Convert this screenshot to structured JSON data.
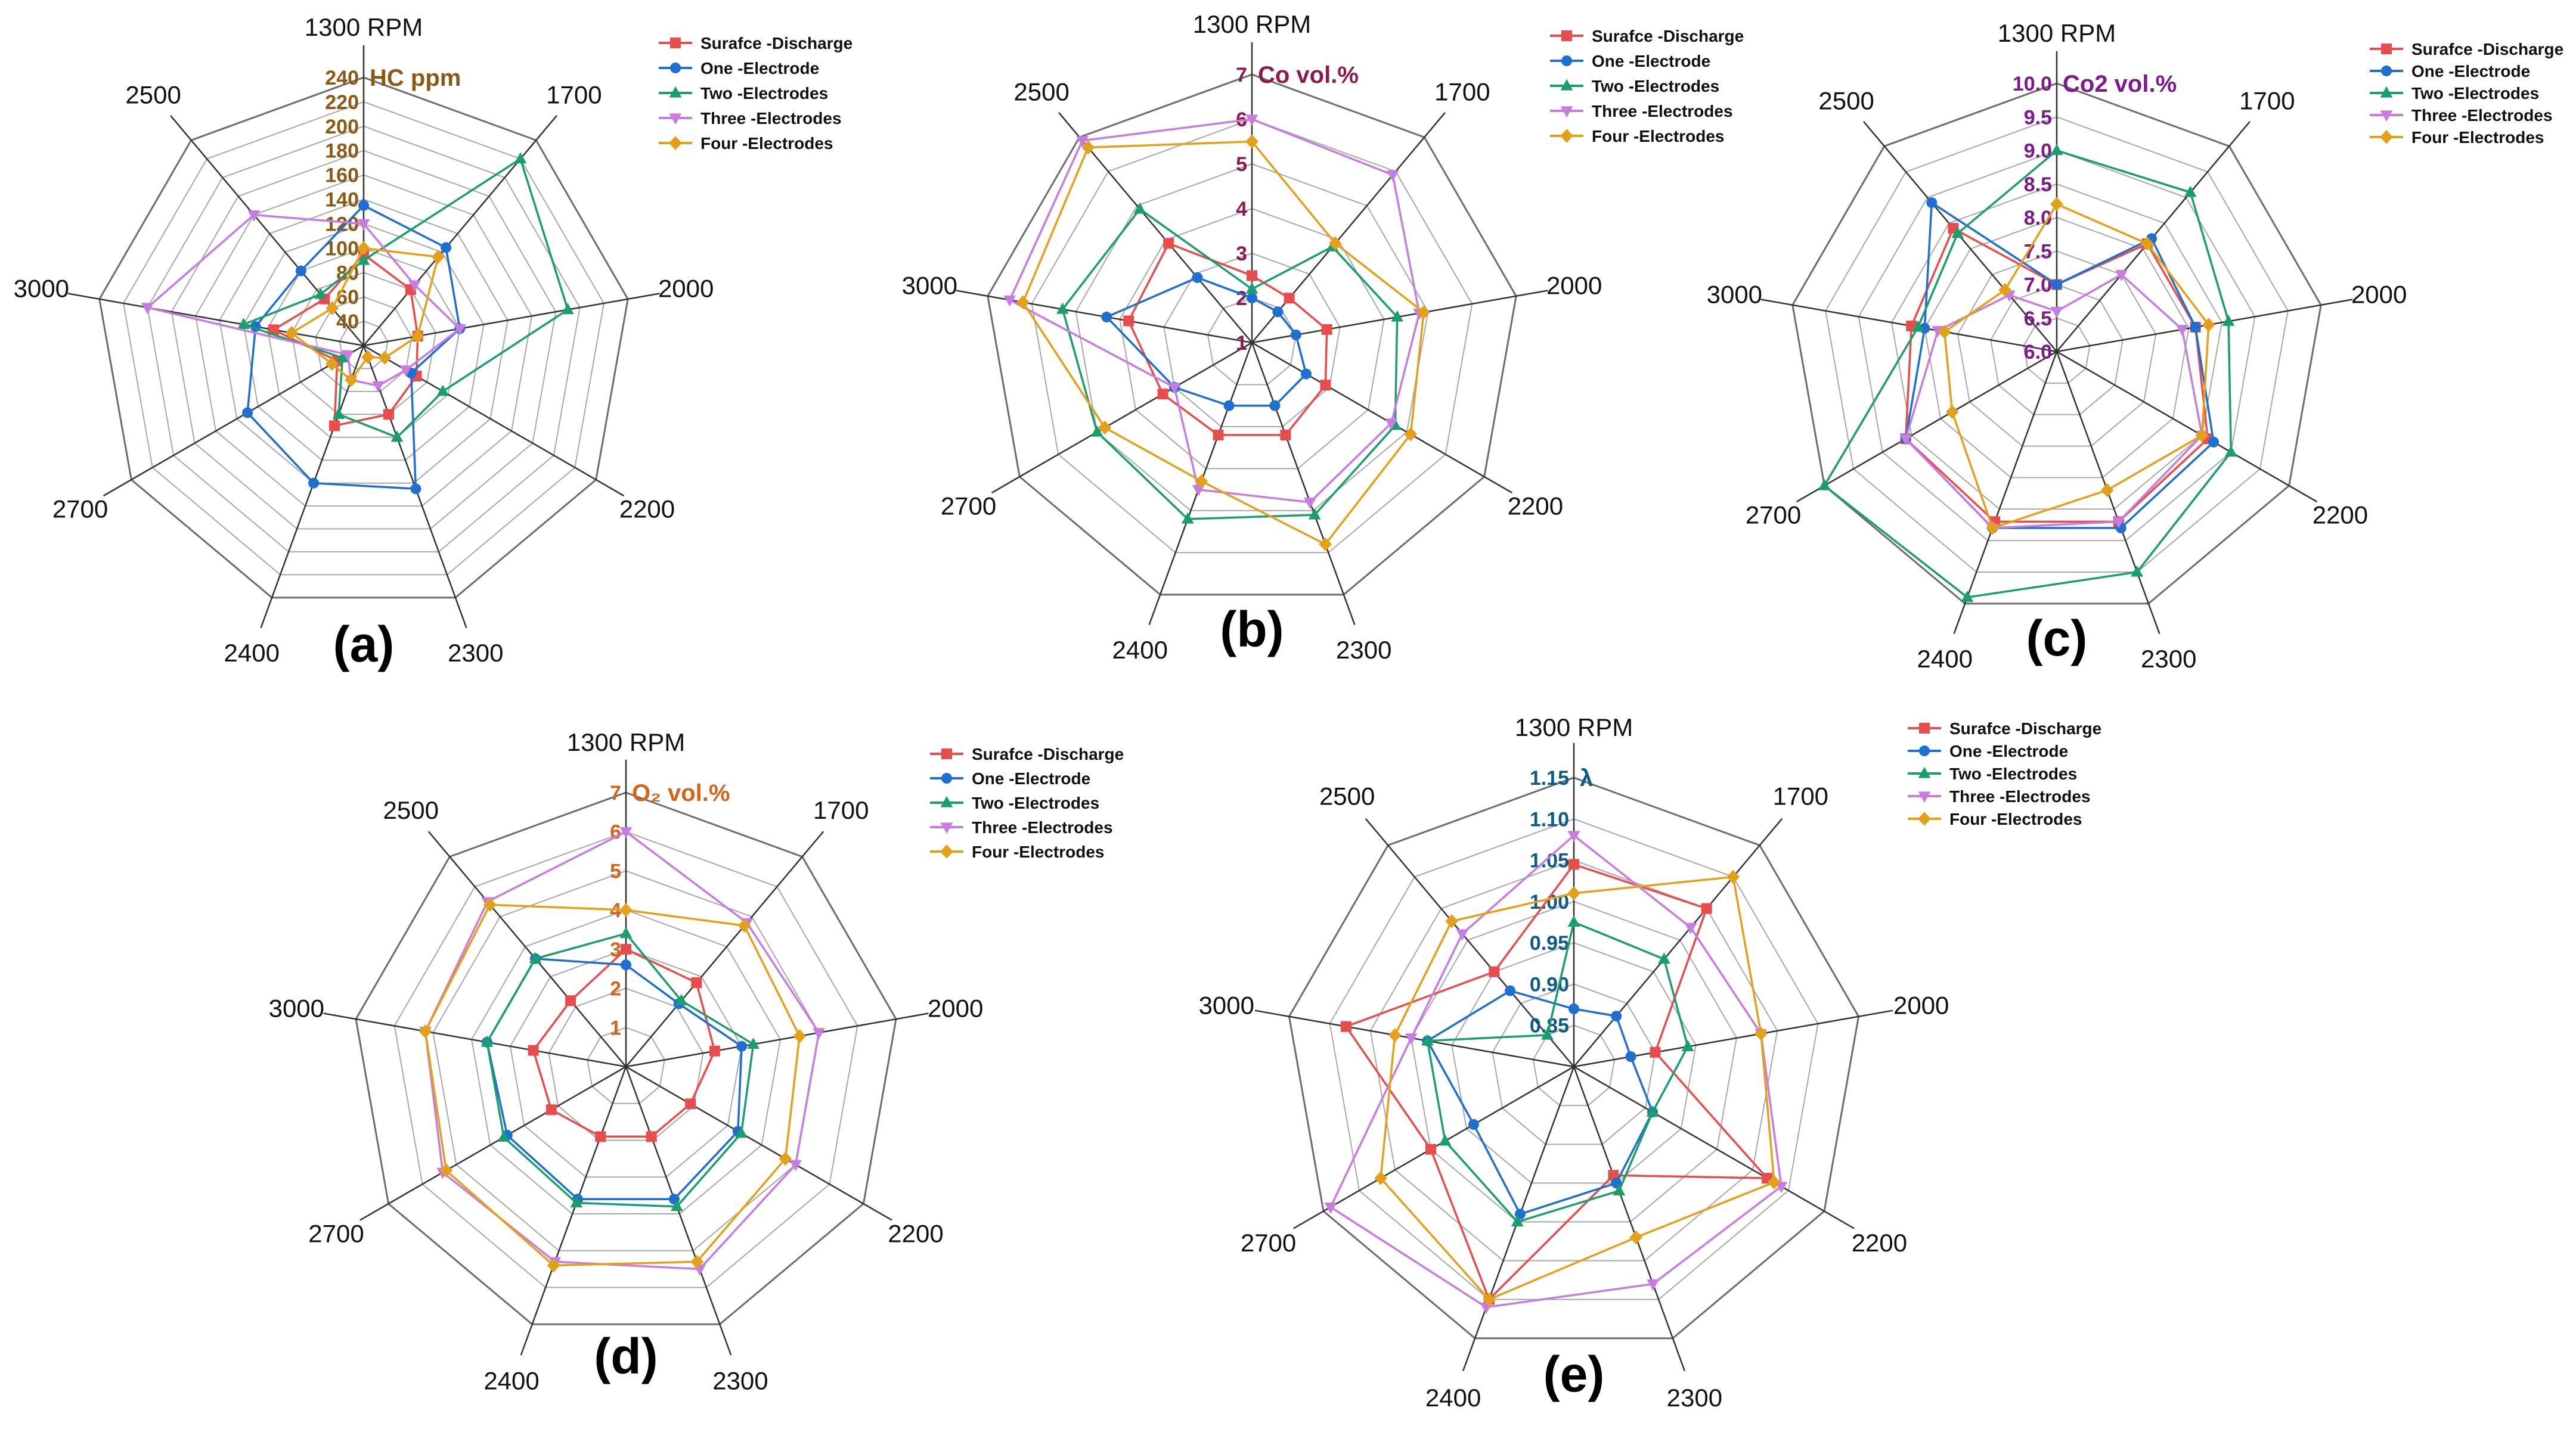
{
  "series_names": [
    "Surafce -Discharge",
    "One -Electrode",
    "Two -Electrodes",
    "Three -Electrodes",
    "Four -Electrodes"
  ],
  "series_colors": [
    "#e84d4d",
    "#1f6fd1",
    "#1b9e6e",
    "#c77ddf",
    "#e3a11a"
  ],
  "series_markers": [
    "square",
    "circle",
    "triangle",
    "triangle-down",
    "diamond"
  ],
  "chart_data": [
    {
      "type": "radar",
      "panel_label": "(a)",
      "unit_label": "HC ppm",
      "unit_color": "#8a5a14",
      "categories": [
        "1300 RPM",
        "1700",
        "2000",
        "2200",
        "2300",
        "2400",
        "2700",
        "3000",
        "2500"
      ],
      "ticks": [
        "40",
        "60",
        "80",
        "100",
        "120",
        "140",
        "160",
        "180",
        "200",
        "220",
        "240"
      ],
      "rlim": [
        20,
        240
      ],
      "series": [
        {
          "name": "Surafce -Discharge",
          "values": [
            95,
            80,
            65,
            70,
            80,
            90,
            45,
            95,
            70
          ]
        },
        {
          "name": "One -Electrode",
          "values": [
            135,
            125,
            100,
            65,
            145,
            140,
            130,
            110,
            100
          ]
        },
        {
          "name": "Two -Electrodes",
          "values": [
            90,
            220,
            190,
            95,
            100,
            80,
            40,
            120,
            75
          ]
        },
        {
          "name": "Three -Electrodes",
          "values": [
            120,
            85,
            100,
            60,
            55,
            50,
            35,
            200,
            160
          ]
        },
        {
          "name": "Four -Electrodes",
          "values": [
            100,
            115,
            65,
            40,
            30,
            50,
            50,
            80,
            60
          ]
        }
      ]
    },
    {
      "type": "radar",
      "panel_label": "(b)",
      "unit_label": "Co vol.%",
      "unit_color": "#8c1a4b",
      "categories": [
        "1300 RPM",
        "1700",
        "2000",
        "2200",
        "2300",
        "2400",
        "2700",
        "3000",
        "2500"
      ],
      "ticks": [
        "1",
        "2",
        "3",
        "4",
        "5",
        "6",
        "7"
      ],
      "rlim": [
        1,
        7
      ],
      "series": [
        {
          "name": "Surafce -Discharge",
          "values": [
            2.5,
            2.3,
            2.7,
            2.9,
            3.2,
            3.2,
            3.3,
            3.8,
            3.9
          ]
        },
        {
          "name": "One -Electrode",
          "values": [
            2.0,
            1.9,
            2.0,
            2.4,
            2.5,
            2.5,
            3.0,
            4.3,
            2.9
          ]
        },
        {
          "name": "Two -Electrodes",
          "values": [
            2.2,
            3.8,
            4.3,
            4.7,
            5.1,
            5.2,
            5.0,
            5.3,
            4.9
          ]
        },
        {
          "name": "Three -Electrodes",
          "values": [
            6.0,
            5.9,
            4.8,
            4.6,
            4.8,
            4.5,
            3.0,
            6.5,
            6.9
          ]
        },
        {
          "name": "Four -Electrodes",
          "values": [
            5.5,
            3.9,
            4.9,
            5.1,
            5.8,
            4.3,
            4.8,
            6.2,
            6.7
          ]
        }
      ]
    },
    {
      "type": "radar",
      "panel_label": "(c)",
      "unit_label": "Co2 vol.%",
      "unit_color": "#7d1a8a",
      "categories": [
        "1300 RPM",
        "1700",
        "2000",
        "2200",
        "2300",
        "2400",
        "2700",
        "3000",
        "2500"
      ],
      "ticks": [
        "6.0",
        "6.5",
        "7.0",
        "7.5",
        "8.0",
        "8.5",
        "9.0",
        "9.5",
        "10.0"
      ],
      "rlim": [
        6.0,
        10.0
      ],
      "series": [
        {
          "name": "Surafce -Discharge",
          "values": [
            7.0,
            8.1,
            8.1,
            8.6,
            8.7,
            8.7,
            8.6,
            8.2,
            8.4
          ]
        },
        {
          "name": "One -Electrode",
          "values": [
            7.0,
            8.2,
            8.1,
            8.7,
            8.8,
            8.8,
            8.6,
            8.0,
            8.9
          ]
        },
        {
          "name": "Two -Electrodes",
          "values": [
            9.0,
            9.1,
            8.6,
            9.0,
            9.5,
            9.9,
            10.0,
            8.1,
            8.3
          ]
        },
        {
          "name": "Three -Electrodes",
          "values": [
            6.6,
            7.5,
            7.9,
            8.5,
            8.7,
            8.8,
            8.6,
            7.8,
            7.1
          ]
        },
        {
          "name": "Four -Electrodes",
          "values": [
            8.2,
            8.1,
            8.3,
            8.5,
            8.2,
            8.8,
            7.8,
            7.7,
            7.2
          ]
        }
      ]
    },
    {
      "type": "radar",
      "panel_label": "(d)",
      "unit_label": "O₂ vol.%",
      "unit_color": "#d4641a",
      "categories": [
        "1300 RPM",
        "1700",
        "2000",
        "2200",
        "2300",
        "2400",
        "2700",
        "3000",
        "2500"
      ],
      "ticks": [
        "1",
        "2",
        "3",
        "4",
        "5",
        "6",
        "7"
      ],
      "rlim": [
        0,
        7
      ],
      "series": [
        {
          "name": "Surafce -Discharge",
          "values": [
            3.0,
            2.8,
            2.3,
            1.9,
            1.9,
            1.9,
            2.2,
            2.4,
            2.2
          ]
        },
        {
          "name": "One -Electrode",
          "values": [
            2.6,
            2.1,
            3.0,
            3.3,
            3.6,
            3.6,
            3.5,
            3.6,
            3.6
          ]
        },
        {
          "name": "Two -Electrodes",
          "values": [
            3.4,
            2.2,
            3.3,
            3.4,
            3.8,
            3.7,
            3.6,
            3.6,
            3.6
          ]
        },
        {
          "name": "Three -Electrodes",
          "values": [
            6.0,
            4.8,
            5.0,
            5.0,
            5.5,
            5.3,
            5.4,
            5.2,
            5.5
          ]
        },
        {
          "name": "Four -Electrodes",
          "values": [
            4.0,
            4.7,
            4.5,
            4.7,
            5.3,
            5.4,
            5.3,
            5.2,
            5.4
          ]
        }
      ]
    },
    {
      "type": "radar",
      "panel_label": "(e)",
      "unit_label": "λ",
      "unit_color": "#0e5a86",
      "categories": [
        "1300 RPM",
        "1700",
        "2000",
        "2200",
        "2300",
        "2400",
        "2700",
        "3000",
        "2500"
      ],
      "ticks": [
        "0.85",
        "0.90",
        "0.95",
        "1.00",
        "1.05",
        "1.10",
        "1.15"
      ],
      "rlim": [
        0.8,
        1.15
      ],
      "series": [
        {
          "name": "Surafce -Discharge",
          "values": [
            1.045,
            1.05,
            0.9,
            1.07,
            0.94,
            1.1,
            1.0,
            1.08,
            0.95
          ]
        },
        {
          "name": "One -Electrode",
          "values": [
            0.87,
            0.88,
            0.87,
            0.91,
            0.95,
            0.99,
            0.94,
            0.98,
            0.92
          ]
        },
        {
          "name": "Two -Electrodes",
          "values": [
            0.975,
            0.97,
            0.94,
            0.91,
            0.96,
            1.0,
            0.98,
            0.98,
            0.85
          ]
        },
        {
          "name": "Three -Electrodes",
          "values": [
            1.08,
            1.02,
            1.03,
            1.09,
            1.08,
            1.11,
            1.14,
            1.0,
            1.01
          ]
        },
        {
          "name": "Four -Electrodes",
          "values": [
            1.01,
            1.1,
            1.03,
            1.08,
            1.02,
            1.1,
            1.07,
            1.02,
            1.03
          ]
        }
      ]
    }
  ]
}
